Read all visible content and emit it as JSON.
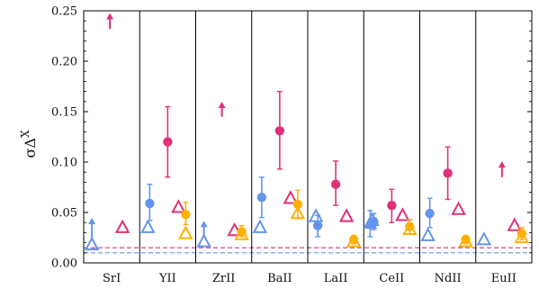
{
  "chart_data": {
    "type": "scatter",
    "ylabel": "σΔ",
    "ylabel_superscript": "X",
    "ylim": [
      0,
      0.25
    ],
    "yticks": [
      "0.00",
      "0.05",
      "0.10",
      "0.15",
      "0.20",
      "0.25"
    ],
    "yticks_values": [
      0,
      0.05,
      0.1,
      0.15,
      0.2,
      0.25
    ],
    "categories": [
      "SrI",
      "YII",
      "ZrII",
      "BaII",
      "LaII",
      "CeII",
      "NdII",
      "EuII"
    ],
    "grid": false,
    "colors": {
      "blue": "#6495ED",
      "magenta": "#E0307A",
      "gold": "#FFB000"
    },
    "reference_lines": [
      {
        "color": "#E0307A",
        "y": 0.015
      },
      {
        "color": "#6495ED",
        "y": 0.01
      }
    ],
    "series": [
      {
        "color": "#6495ED",
        "marker": "triangle-open",
        "points": [
          {
            "cat": "SrI",
            "y": 0.018,
            "upper_limit": true,
            "arrow_top": 0.043
          },
          {
            "cat": "YII",
            "y": 0.035
          },
          {
            "cat": "ZrII",
            "y": 0.021,
            "upper_limit": true,
            "arrow_top": 0.04
          },
          {
            "cat": "BaII",
            "y": 0.035
          },
          {
            "cat": "LaII",
            "y": 0.046
          },
          {
            "cat": "CeII",
            "y": 0.042
          },
          {
            "cat": "NdII",
            "y": 0.027
          },
          {
            "cat": "EuII",
            "y": 0.023
          }
        ]
      },
      {
        "color": "#6495ED",
        "marker": "circle",
        "points": [
          {
            "cat": "YII",
            "y": 0.059,
            "err_low": 0.042,
            "err_high": 0.078
          },
          {
            "cat": "BaII",
            "y": 0.065,
            "err_low": 0.045,
            "err_high": 0.085
          },
          {
            "cat": "LaII",
            "y": 0.037,
            "err_low": 0.026,
            "err_high": 0.047
          },
          {
            "cat": "CeII",
            "y": 0.041,
            "err_low": 0.033,
            "err_high": 0.049
          },
          {
            "cat": "NdII",
            "y": 0.049,
            "err_low": 0.035,
            "err_high": 0.064
          }
        ]
      },
      {
        "color": "#6495ED",
        "marker": "triangle-filled",
        "points": [
          {
            "cat": "CeII",
            "y": 0.039,
            "err_low": 0.026,
            "err_high": 0.052
          }
        ]
      },
      {
        "color": "#E0307A",
        "marker": "triangle-open",
        "points": [
          {
            "cat": "SrI",
            "y": 0.035
          },
          {
            "cat": "YII",
            "y": 0.055
          },
          {
            "cat": "ZrII",
            "y": 0.032
          },
          {
            "cat": "BaII",
            "y": 0.064
          },
          {
            "cat": "LaII",
            "y": 0.046
          },
          {
            "cat": "CeII",
            "y": 0.047
          },
          {
            "cat": "NdII",
            "y": 0.053
          },
          {
            "cat": "EuII",
            "y": 0.037
          }
        ]
      },
      {
        "color": "#E0307A",
        "marker": "circle",
        "points": [
          {
            "cat": "YII",
            "y": 0.12,
            "err_low": 0.085,
            "err_high": 0.155
          },
          {
            "cat": "BaII",
            "y": 0.131,
            "err_low": 0.093,
            "err_high": 0.17
          },
          {
            "cat": "LaII",
            "y": 0.078,
            "err_low": 0.057,
            "err_high": 0.101
          },
          {
            "cat": "CeII",
            "y": 0.057,
            "err_low": 0.04,
            "err_high": 0.073
          },
          {
            "cat": "NdII",
            "y": 0.089,
            "err_low": 0.063,
            "err_high": 0.115
          }
        ]
      },
      {
        "color": "#E0307A",
        "marker": "arrow",
        "points": [
          {
            "cat": "SrI",
            "y": 0.232,
            "arrow_top": 0.246
          },
          {
            "cat": "ZrII",
            "y": 0.145,
            "arrow_top": 0.158
          },
          {
            "cat": "EuII",
            "y": 0.085,
            "arrow_top": 0.099
          }
        ]
      },
      {
        "color": "#FFB000",
        "marker": "triangle-open",
        "points": [
          {
            "cat": "YII",
            "y": 0.029
          },
          {
            "cat": "ZrII",
            "y": 0.028
          },
          {
            "cat": "BaII",
            "y": 0.049
          },
          {
            "cat": "LaII",
            "y": 0.021
          },
          {
            "cat": "CeII",
            "y": 0.033
          },
          {
            "cat": "NdII",
            "y": 0.021
          },
          {
            "cat": "EuII",
            "y": 0.025
          }
        ]
      },
      {
        "color": "#FFB000",
        "marker": "circle",
        "points": [
          {
            "cat": "YII",
            "y": 0.048,
            "err_low": 0.038,
            "err_high": 0.06
          },
          {
            "cat": "ZrII",
            "y": 0.031,
            "err_low": 0.026,
            "err_high": 0.037
          },
          {
            "cat": "BaII",
            "y": 0.058,
            "err_low": 0.044,
            "err_high": 0.072
          },
          {
            "cat": "LaII",
            "y": 0.023,
            "err_low": 0.019,
            "err_high": 0.027
          },
          {
            "cat": "CeII",
            "y": 0.036,
            "err_low": 0.029,
            "err_high": 0.043
          },
          {
            "cat": "NdII",
            "y": 0.023,
            "err_low": 0.019,
            "err_high": 0.027
          },
          {
            "cat": "EuII",
            "y": 0.029,
            "err_low": 0.023,
            "err_high": 0.035
          }
        ]
      }
    ]
  }
}
